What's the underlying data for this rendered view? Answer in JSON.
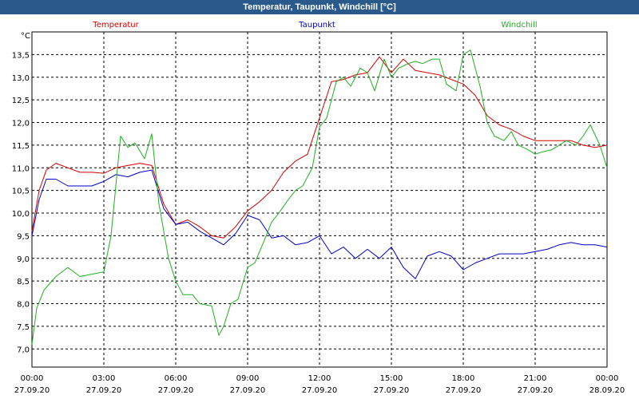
{
  "title": "Temperatur, Taupunkt, Windchill [°C]",
  "chart_data": {
    "type": "line",
    "unit_label": "°C",
    "ylim": [
      6.6,
      14.0
    ],
    "y_ticks": [
      "7,0",
      "7,5",
      "8,0",
      "8,5",
      "9,0",
      "9,5",
      "10,0",
      "10,5",
      "11,0",
      "11,5",
      "12,0",
      "12,5",
      "13,0",
      "13,5"
    ],
    "y_tick_values": [
      7.0,
      7.5,
      8.0,
      8.5,
      9.0,
      9.5,
      10.0,
      10.5,
      11.0,
      11.5,
      12.0,
      12.5,
      13.0,
      13.5
    ],
    "xlim": [
      0,
      24
    ],
    "x_ticks": [
      {
        "h": 0,
        "time": "00:00",
        "date": "27.09.20"
      },
      {
        "h": 3,
        "time": "03:00",
        "date": "27.09.20"
      },
      {
        "h": 6,
        "time": "06:00",
        "date": "27.09.20"
      },
      {
        "h": 9,
        "time": "09:00",
        "date": "27.09.20"
      },
      {
        "h": 12,
        "time": "12:00",
        "date": "27.09.20"
      },
      {
        "h": 15,
        "time": "15:00",
        "date": "27.09.20"
      },
      {
        "h": 18,
        "time": "18:00",
        "date": "27.09.20"
      },
      {
        "h": 21,
        "time": "21:00",
        "date": "27.09.20"
      },
      {
        "h": 24,
        "time": "00:00",
        "date": "28.09.20"
      }
    ],
    "grid": true,
    "series": [
      {
        "name": "Temperatur",
        "color": "#d40000",
        "x": [
          0,
          0.3,
          0.6,
          1,
          1.5,
          2,
          2.5,
          3,
          3.5,
          4,
          4.5,
          5,
          5.5,
          6,
          6.5,
          7,
          7.5,
          8,
          8.5,
          9,
          9.5,
          10,
          10.5,
          11,
          11.5,
          12,
          12.5,
          13,
          13.5,
          14,
          14.5,
          15,
          15.5,
          16,
          16.5,
          17,
          17.5,
          18,
          18.5,
          19,
          19.5,
          20,
          20.5,
          21,
          21.5,
          22,
          22.5,
          23,
          23.5,
          24
        ],
        "values": [
          9.6,
          10.5,
          10.95,
          11.1,
          11.0,
          10.9,
          10.9,
          10.88,
          11.0,
          11.05,
          11.1,
          11.05,
          10.2,
          9.75,
          9.85,
          9.7,
          9.5,
          9.45,
          9.7,
          10.05,
          10.25,
          10.5,
          10.9,
          11.15,
          11.3,
          12.1,
          12.9,
          12.95,
          13.05,
          13.1,
          13.45,
          13.1,
          13.4,
          13.15,
          13.1,
          13.05,
          12.95,
          12.85,
          12.6,
          12.15,
          11.95,
          11.85,
          11.7,
          11.6,
          11.6,
          11.6,
          11.6,
          11.5,
          11.45,
          11.5
        ]
      },
      {
        "name": "Taupunkt",
        "color": "#0000c8",
        "x": [
          0,
          0.3,
          0.6,
          1,
          1.5,
          2,
          2.5,
          3,
          3.5,
          4,
          4.5,
          5,
          5.5,
          6,
          6.5,
          7,
          7.5,
          8,
          8.5,
          9,
          9.5,
          10,
          10.5,
          11,
          11.5,
          12,
          12.5,
          13,
          13.5,
          14,
          14.5,
          15,
          15.5,
          16,
          16.5,
          17,
          17.5,
          18,
          18.5,
          19,
          19.5,
          20,
          20.5,
          21,
          21.5,
          22,
          22.5,
          23,
          23.5,
          24
        ],
        "values": [
          9.5,
          10.3,
          10.75,
          10.75,
          10.6,
          10.6,
          10.6,
          10.7,
          10.85,
          10.8,
          10.9,
          10.95,
          10.1,
          9.75,
          9.8,
          9.6,
          9.45,
          9.3,
          9.55,
          9.95,
          9.85,
          9.45,
          9.5,
          9.3,
          9.35,
          9.5,
          9.1,
          9.25,
          9.0,
          9.2,
          9.0,
          9.25,
          8.8,
          8.55,
          9.05,
          9.15,
          9.05,
          8.75,
          8.9,
          9.0,
          9.1,
          9.1,
          9.1,
          9.15,
          9.2,
          9.3,
          9.35,
          9.3,
          9.3,
          9.25
        ]
      },
      {
        "name": "Windchill",
        "color": "#1fb01f",
        "x": [
          0,
          0.2,
          0.5,
          1,
          1.5,
          2,
          2.5,
          3,
          3.3,
          3.7,
          4,
          4.3,
          4.7,
          5,
          5.3,
          5.7,
          6,
          6.3,
          6.7,
          7,
          7.5,
          7.8,
          8,
          8.3,
          8.6,
          9,
          9.3,
          9.7,
          10,
          10.3,
          10.7,
          11,
          11.3,
          11.7,
          12,
          12.3,
          12.7,
          13,
          13.3,
          13.7,
          14,
          14.3,
          14.7,
          15,
          15.3,
          15.7,
          16,
          16.3,
          16.7,
          17,
          17.3,
          17.7,
          18,
          18.3,
          18.7,
          19,
          19.3,
          19.7,
          20,
          20.3,
          20.7,
          21,
          21.3,
          21.7,
          22,
          22.3,
          22.7,
          23,
          23.3,
          23.7,
          24
        ],
        "values": [
          7.1,
          7.9,
          8.3,
          8.6,
          8.8,
          8.6,
          8.65,
          8.7,
          9.5,
          11.7,
          11.45,
          11.55,
          11.2,
          11.75,
          10.2,
          9.0,
          8.5,
          8.2,
          8.2,
          8.0,
          7.95,
          7.3,
          7.5,
          8.0,
          8.1,
          8.8,
          8.9,
          9.4,
          9.8,
          10.0,
          10.3,
          10.5,
          10.6,
          11.0,
          11.9,
          12.1,
          12.9,
          13.0,
          12.8,
          13.2,
          13.1,
          12.7,
          13.4,
          13.0,
          13.2,
          13.3,
          13.35,
          13.3,
          13.4,
          13.4,
          12.85,
          12.7,
          13.5,
          13.6,
          12.8,
          12.0,
          11.7,
          11.6,
          11.8,
          11.5,
          11.4,
          11.3,
          11.35,
          11.4,
          11.5,
          11.6,
          11.5,
          11.7,
          11.95,
          11.5,
          11.0
        ]
      }
    ]
  }
}
